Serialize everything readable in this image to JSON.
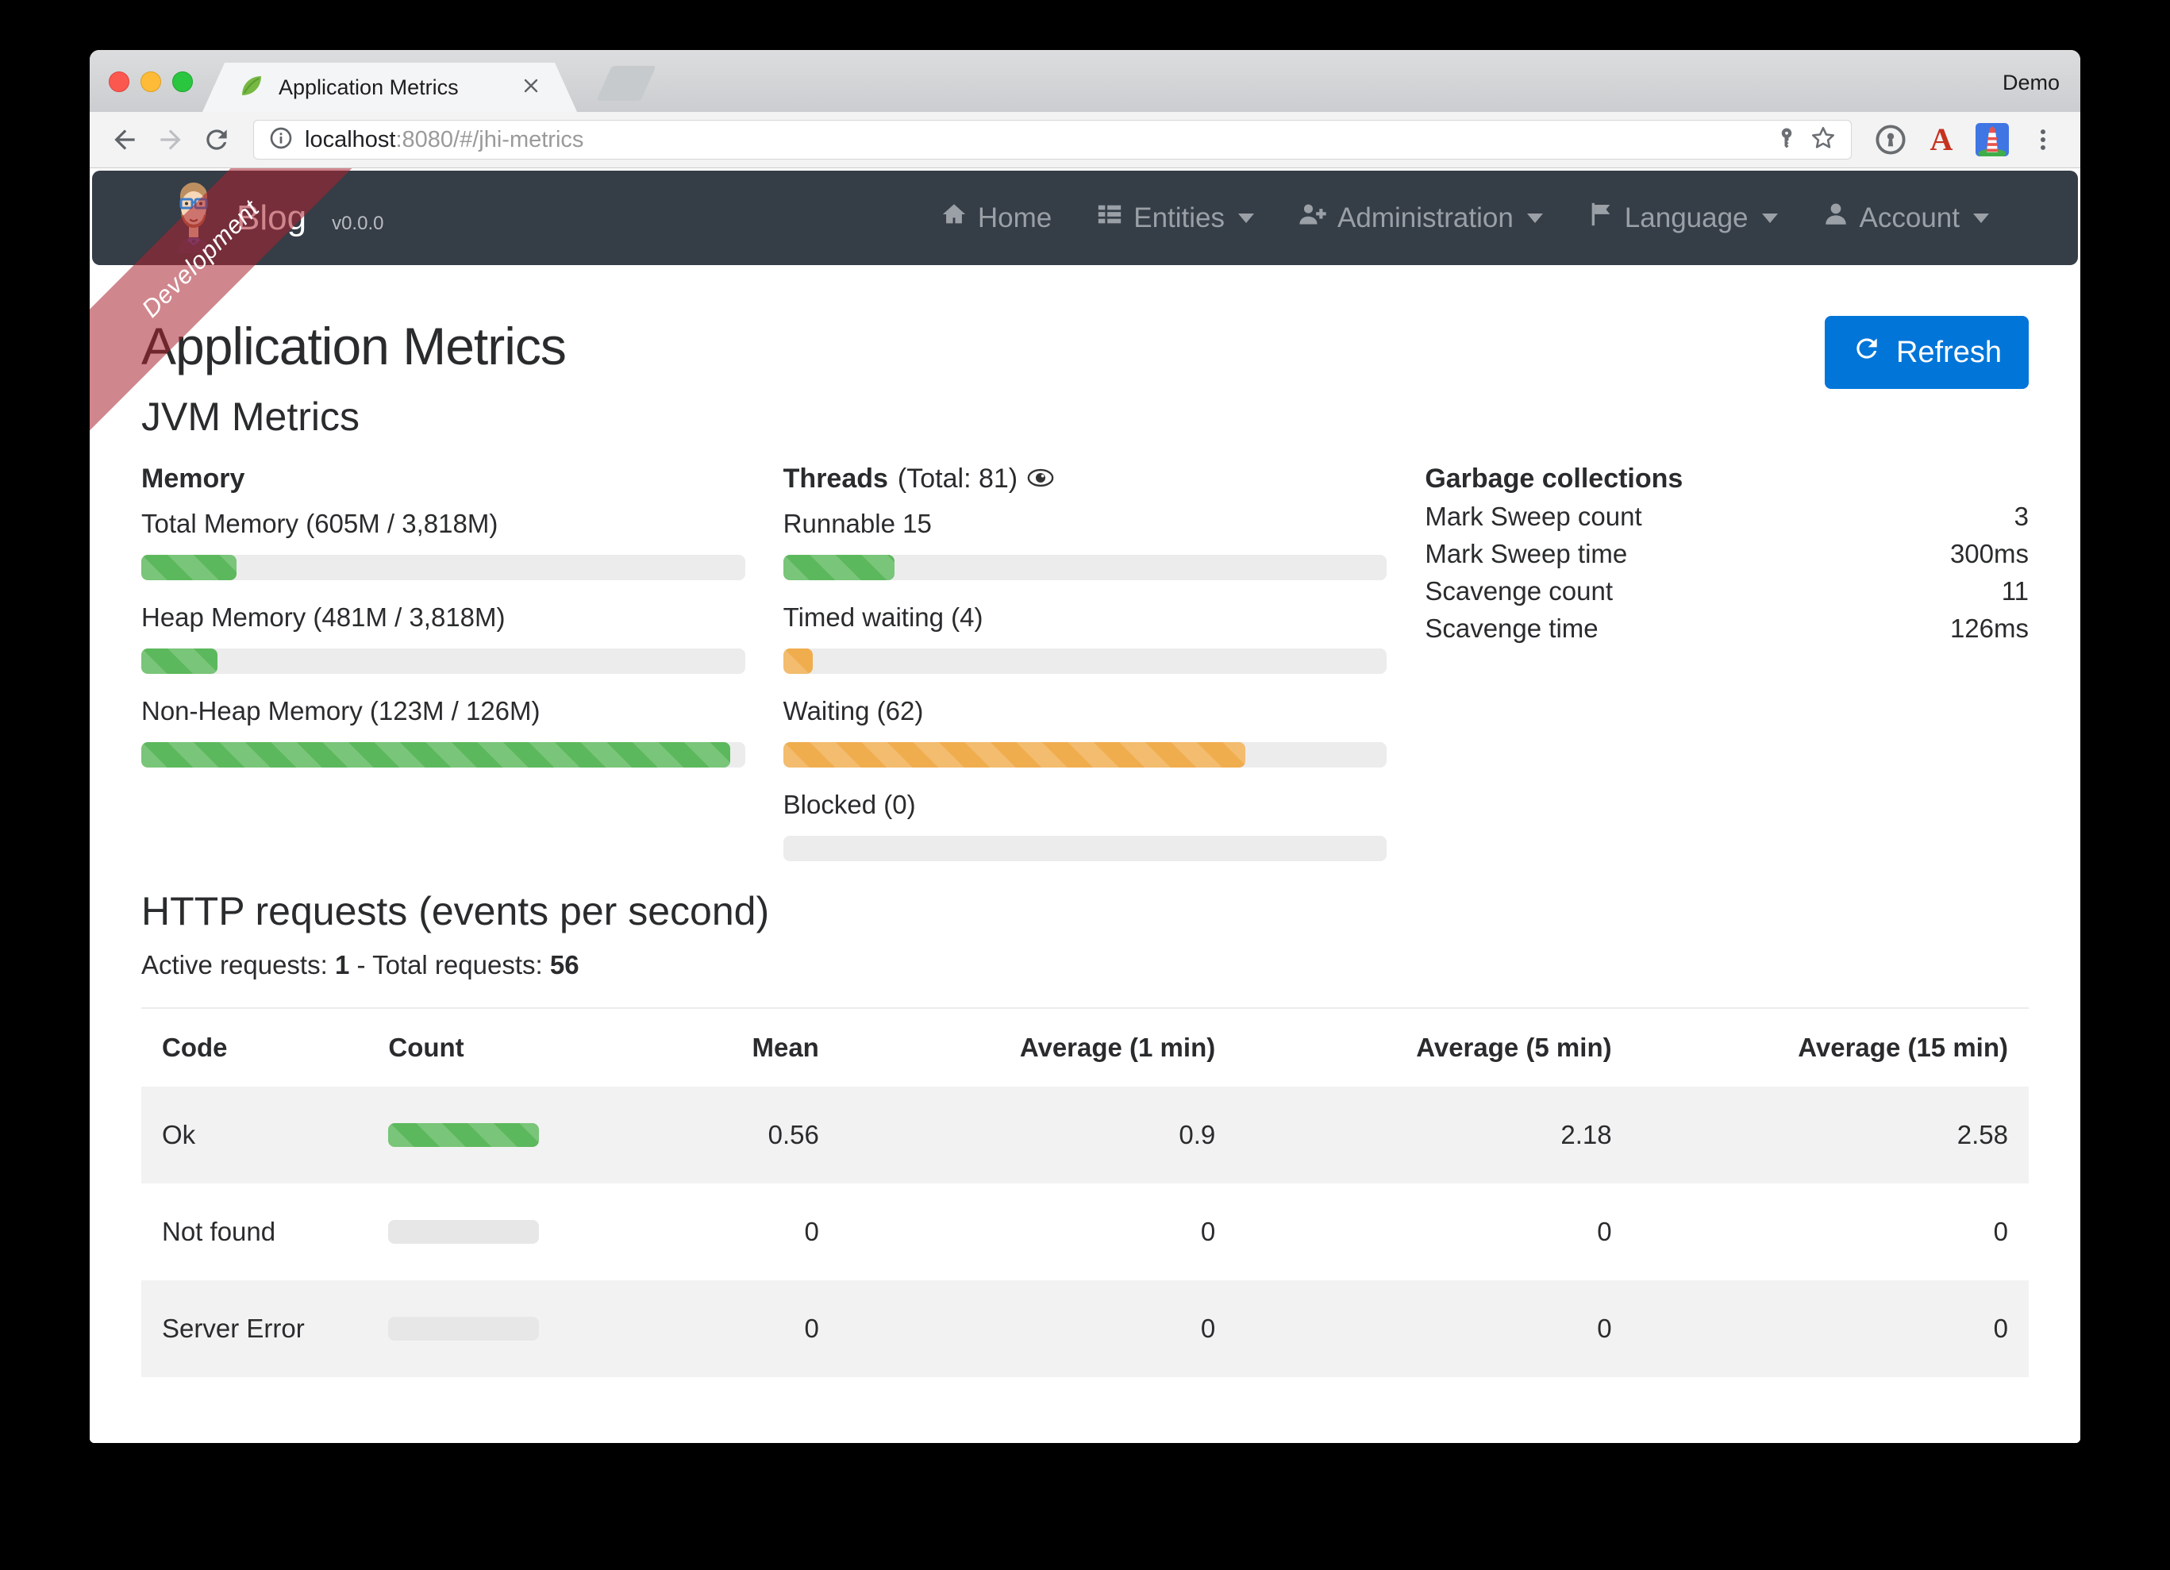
{
  "browser": {
    "profile_label": "Demo",
    "tab_title": "Application Metrics",
    "url_host": "localhost",
    "url_rest": ":8080/#/jhi-metrics",
    "icons": [
      "spring-leaf-icon",
      "tab-close-icon",
      "back-icon",
      "forward-icon",
      "reload-icon",
      "page-info-icon",
      "key-icon",
      "bookmark-star-icon",
      "onepassword-extension-icon",
      "red-a-extension-icon",
      "lighthouse-extension-icon",
      "browser-menu-icon"
    ]
  },
  "ribbon_label": "Development",
  "navbar": {
    "brand": "Blog",
    "version": "v0.0.0",
    "items": [
      {
        "label": "Home",
        "icon": "home-icon",
        "has_caret": false
      },
      {
        "label": "Entities",
        "icon": "entities-icon",
        "has_caret": true
      },
      {
        "label": "Administration",
        "icon": "administration-icon",
        "has_caret": true
      },
      {
        "label": "Language",
        "icon": "language-icon",
        "has_caret": true
      },
      {
        "label": "Account",
        "icon": "account-icon",
        "has_caret": true
      }
    ]
  },
  "page": {
    "title": "Application Metrics",
    "refresh_label": "Refresh",
    "jvm_heading": "JVM Metrics",
    "memory": {
      "heading": "Memory",
      "bars": [
        {
          "label": "Total Memory (605M / 3,818M)",
          "percent": 15.8,
          "color": "success"
        },
        {
          "label": "Heap Memory (481M / 3,818M)",
          "percent": 12.6,
          "color": "success"
        },
        {
          "label": "Non-Heap Memory (123M / 126M)",
          "percent": 97.6,
          "color": "success"
        }
      ]
    },
    "threads": {
      "heading": "Threads",
      "total_suffix": "(Total: 81)",
      "bars": [
        {
          "label": "Runnable 15",
          "percent": 18.5,
          "color": "success"
        },
        {
          "label": "Timed waiting (4)",
          "percent": 4.9,
          "color": "warning"
        },
        {
          "label": "Waiting (62)",
          "percent": 76.5,
          "color": "warning"
        },
        {
          "label": "Blocked (0)",
          "percent": 0,
          "color": "success"
        }
      ]
    },
    "gc": {
      "heading": "Garbage collections",
      "rows": [
        {
          "label": "Mark Sweep count",
          "value": "3"
        },
        {
          "label": "Mark Sweep time",
          "value": "300ms"
        },
        {
          "label": "Scavenge count",
          "value": "11"
        },
        {
          "label": "Scavenge time",
          "value": "126ms"
        }
      ]
    },
    "http": {
      "heading": "HTTP requests (events per second)",
      "active_label": "Active requests:",
      "active_value": "1",
      "separator": "-",
      "total_label": "Total requests:",
      "total_value": "56"
    },
    "table": {
      "headers": [
        "Code",
        "Count",
        "Mean",
        "Average (1 min)",
        "Average (5 min)",
        "Average (15 min)"
      ],
      "rows": [
        {
          "code": "Ok",
          "count_percent": 100,
          "count_color": "success",
          "values": [
            "0.56",
            "0.9",
            "2.18",
            "2.58"
          ]
        },
        {
          "code": "Not found",
          "count_percent": 0,
          "count_color": "none",
          "values": [
            "0",
            "0",
            "0",
            "0"
          ]
        },
        {
          "code": "Server Error",
          "count_percent": 0,
          "count_color": "none",
          "values": [
            "0",
            "0",
            "0",
            "0"
          ]
        }
      ]
    }
  }
}
